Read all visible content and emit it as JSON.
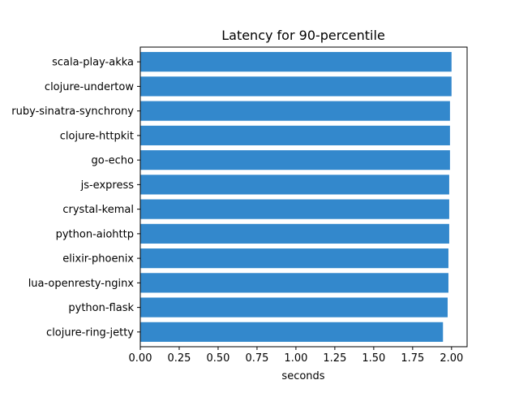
{
  "chart_data": {
    "type": "bar",
    "orientation": "horizontal",
    "title": "Latency for 90-percentile",
    "xlabel": "seconds",
    "ylabel": "",
    "xlim": [
      0,
      2.1
    ],
    "xticks": [
      "0.00",
      "0.25",
      "0.50",
      "0.75",
      "1.00",
      "1.25",
      "1.50",
      "1.75",
      "2.00"
    ],
    "grid": false,
    "legend": "none",
    "bar_color": "#3388cc",
    "categories": [
      "scala-play-akka",
      "clojure-undertow",
      "ruby-sinatra-synchrony",
      "clojure-httpkit",
      "go-echo",
      "js-express",
      "crystal-kemal",
      "python-aiohttp",
      "elixir-phoenix",
      "lua-openresty-nginx",
      "python-flask",
      "clojure-ring-jetty"
    ],
    "values": [
      2.0,
      2.0,
      1.99,
      1.99,
      1.99,
      1.985,
      1.985,
      1.985,
      1.98,
      1.98,
      1.975,
      1.945
    ]
  }
}
